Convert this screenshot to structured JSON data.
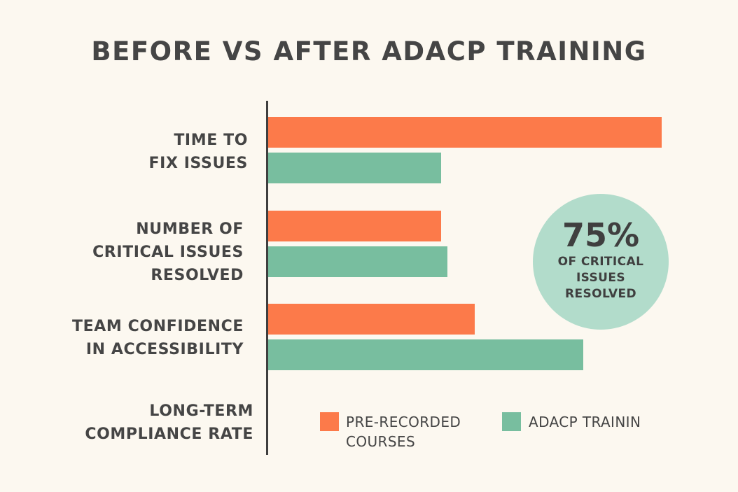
{
  "chart_data": {
    "type": "bar",
    "orientation": "horizontal",
    "title": "BEFORE VS AFTER ADACP TRAINING",
    "categories": [
      "TIME TO\nFIX ISSUES",
      "NUMBER OF\nCRITICAL ISSUES\nRESOLVED",
      "TEAM CONFIDENCE\nIN ACCESSIBILITY",
      "LONG-TERM\nCOMPLIANCE RATE"
    ],
    "series": [
      {
        "name": "PRE-RECORDED\nCOURSES",
        "color": "#fc7a4a",
        "values": [
          100,
          44,
          52.5,
          null
        ]
      },
      {
        "name": "ADACP TRAININ",
        "color": "#78be9f",
        "values": [
          44,
          45.5,
          80,
          null
        ]
      }
    ],
    "xlim": [
      0,
      100
    ],
    "axis_ticks": "none",
    "grid": false,
    "legend_position": "bottom-right",
    "callout": {
      "value": "75%",
      "text": "OF CRITICAL\nISSUES\nRESOLVED",
      "color": "#b2dccb"
    }
  }
}
